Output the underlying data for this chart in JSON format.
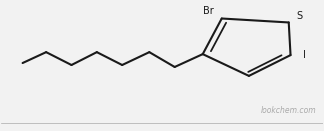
{
  "bg_color": "#f2f2f2",
  "line_color": "#1a1a1a",
  "line_width": 1.5,
  "label_color": "#1a1a1a",
  "watermark_text": "lookchem.com",
  "watermark_color": "#aaaaaa",
  "watermark_fontsize": 5.5,
  "br_label": "Br",
  "s_label": "S",
  "i_label": "I",
  "label_fontsize": 7.0,
  "figsize": [
    3.24,
    1.31
  ],
  "dpi": 100,
  "xlim": [
    -0.05,
    1.05
  ],
  "ylim": [
    0.0,
    1.0
  ]
}
